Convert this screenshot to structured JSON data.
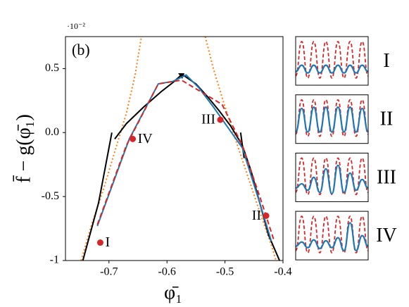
{
  "chart_data": [
    {
      "type": "line",
      "panel_label": "(b)",
      "exponent_label": "·10⁻²",
      "xlabel": "φ̄₁",
      "ylabel": "f̄ − g(φ̄₁)",
      "xlim": [
        -0.775,
        -0.4
      ],
      "ylim": [
        -1,
        0.75
      ],
      "xticks": [
        -0.7,
        -0.6,
        -0.5,
        -0.4
      ],
      "yticks": [
        -1,
        -0.5,
        {
          "value": 0,
          "label": "0.0"
        },
        0.5
      ],
      "series": [
        {
          "color": "#ff7f0e",
          "style": "dotted",
          "x": [
            -0.748,
            -0.73,
            -0.71,
            -0.69,
            -0.67,
            -0.655,
            -0.644,
            null,
            -0.534,
            -0.52,
            -0.5,
            -0.48,
            -0.46,
            -0.44,
            -0.42,
            -0.412
          ],
          "values": [
            -1,
            -0.72,
            -0.45,
            -0.15,
            0.15,
            0.45,
            0.75,
            null,
            0.75,
            0.5,
            0.2,
            -0.08,
            -0.35,
            -0.62,
            -0.88,
            -1
          ]
        },
        {
          "color": "#000000",
          "style": "solid",
          "x": [
            -0.745,
            -0.718,
            -0.695,
            null,
            -0.69,
            -0.67,
            -0.64,
            -0.61,
            -0.59,
            -0.574,
            -0.55,
            -0.53,
            -0.51,
            -0.49,
            -0.47,
            -0.455,
            -0.44,
            -0.425,
            -0.406,
            null,
            -0.473,
            -0.467
          ],
          "values": [
            -1,
            -0.55,
            0.0,
            null,
            -0.05,
            0.07,
            0.2,
            0.32,
            0.39,
            0.455,
            0.38,
            0.28,
            0.17,
            0.05,
            -0.1,
            -0.3,
            -0.55,
            -0.8,
            -1,
            null,
            0.0,
            -0.2
          ]
        },
        {
          "color": "#1f77b4",
          "style": "solid",
          "x": [
            -0.72,
            -0.665,
            -0.615,
            -0.59,
            -0.567,
            -0.545,
            -0.52,
            -0.47,
            -0.44,
            -0.42
          ],
          "values": [
            -0.73,
            -0.05,
            0.38,
            0.4,
            0.45,
            0.35,
            0.2,
            -0.12,
            -0.55,
            -0.85
          ]
        },
        {
          "color": "#d62728",
          "style": "dashed",
          "x": [
            -0.72,
            -0.67,
            -0.615,
            -0.575,
            -0.505,
            -0.47,
            -0.44,
            -0.415
          ],
          "values": [
            -0.72,
            -0.1,
            0.38,
            0.41,
            0.22,
            -0.1,
            -0.5,
            -0.85
          ]
        }
      ],
      "points": {
        "color": "#d62728",
        "x": [
          -0.715,
          -0.429,
          -0.508,
          -0.659
        ],
        "values": [
          -0.86,
          -0.65,
          0.1,
          -0.05
        ],
        "labels": [
          "I",
          "II",
          "III",
          "IV"
        ]
      }
    },
    {
      "type": "wave",
      "label": "I",
      "ylim": [
        0,
        1
      ],
      "series": [
        {
          "color": "#d62728",
          "style": "dashed",
          "values": [
            0.15,
            0.95,
            0.1,
            0.95,
            0.1,
            0.95,
            0.1,
            0.95,
            0.1,
            0.95,
            0.1,
            0.95,
            0.15
          ]
        },
        {
          "color": "#1f77b4",
          "style": "solid",
          "values": [
            0.25,
            0.4,
            0.22,
            0.4,
            0.22,
            0.4,
            0.22,
            0.4,
            0.22,
            0.4,
            0.22,
            0.4,
            0.25
          ]
        }
      ]
    },
    {
      "type": "wave",
      "label": "II",
      "ylim": [
        0,
        1
      ],
      "series": [
        {
          "color": "#d62728",
          "style": "dashed",
          "values": [
            0.15,
            0.95,
            0.1,
            0.95,
            0.1,
            0.95,
            0.1,
            0.95,
            0.1,
            0.95,
            0.1,
            0.95,
            0.15
          ]
        },
        {
          "color": "#1f77b4",
          "style": "solid",
          "values": [
            0.2,
            0.75,
            0.2,
            0.78,
            0.2,
            0.78,
            0.2,
            0.78,
            0.2,
            0.78,
            0.2,
            0.75,
            0.2
          ]
        }
      ]
    },
    {
      "type": "wave",
      "label": "III",
      "ylim": [
        0,
        1
      ],
      "series": [
        {
          "color": "#d62728",
          "style": "dashed",
          "values": [
            0.15,
            0.95,
            0.1,
            0.95,
            0.1,
            0.95,
            0.1,
            0.95,
            0.1,
            0.95,
            0.1,
            0.95,
            0.15
          ]
        },
        {
          "color": "#1f77b4",
          "style": "solid",
          "values": [
            0.25,
            0.35,
            0.2,
            0.5,
            0.15,
            0.7,
            0.12,
            0.78,
            0.15,
            0.6,
            0.2,
            0.45,
            0.25
          ]
        }
      ]
    },
    {
      "type": "wave",
      "label": "IV",
      "ylim": [
        0,
        1
      ],
      "series": [
        {
          "color": "#d62728",
          "style": "dashed",
          "values": [
            0.15,
            0.95,
            0.1,
            0.95,
            0.1,
            0.95,
            0.1,
            0.95,
            0.1,
            0.95,
            0.1,
            0.95,
            0.15
          ]
        },
        {
          "color": "#1f77b4",
          "style": "solid",
          "values": [
            0.25,
            0.35,
            0.22,
            0.4,
            0.2,
            0.38,
            0.22,
            0.45,
            0.15,
            0.8,
            0.15,
            0.5,
            0.25
          ]
        }
      ]
    }
  ]
}
